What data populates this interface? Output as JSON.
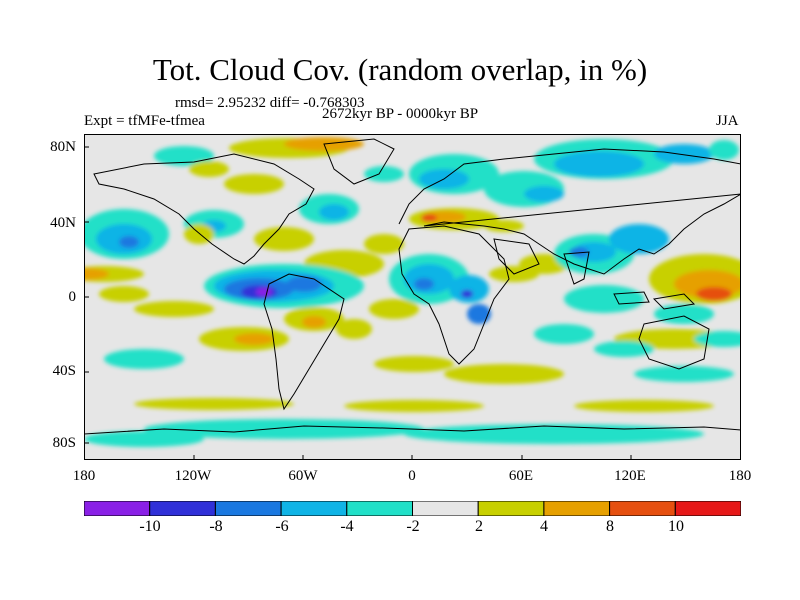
{
  "title": "Tot. Cloud Cov. (random overlap, in %)",
  "stats": "rmsd= 2.95232 diff= -0.768303",
  "period": "2672kyr BP - 0000kyr BP",
  "experiment": "Expt = tfMFe-tfmea",
  "season": "JJA",
  "lat_labels": [
    "80N",
    "40N",
    "0",
    "40S",
    "80S"
  ],
  "lon_labels": [
    "180",
    "120W",
    "60W",
    "0",
    "60E",
    "120E",
    "180"
  ],
  "colorbar": {
    "labels": [
      "-10",
      "-8",
      "-6",
      "-4",
      "-2",
      "2",
      "4",
      "8",
      "10"
    ],
    "colors": [
      "#8a20e6",
      "#3030d8",
      "#1a78e0",
      "#10b4e6",
      "#20e0c8",
      "#e6e6e6",
      "#c8d000",
      "#e6a000",
      "#e65010",
      "#e61818"
    ]
  },
  "colors": {
    "neutral": "#e6e6e6",
    "coastline": "#000000"
  }
}
